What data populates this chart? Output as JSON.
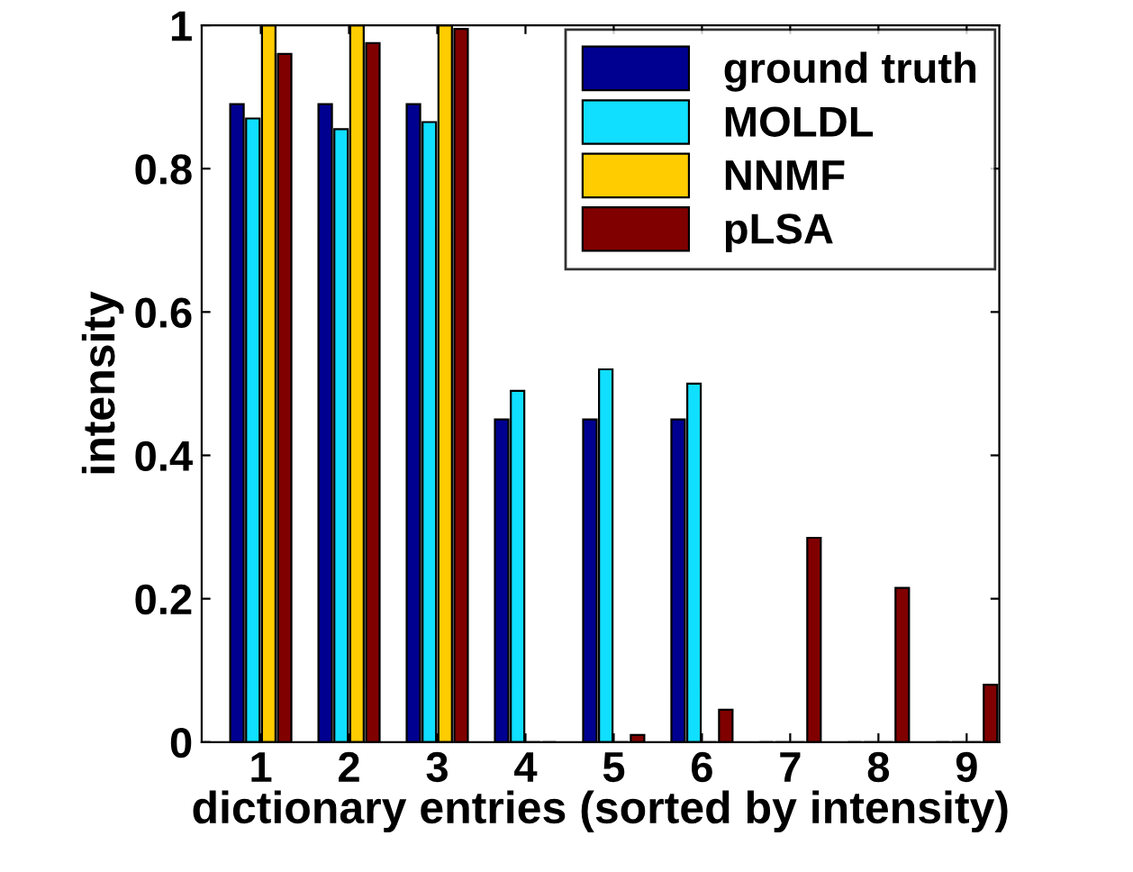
{
  "chart_data": {
    "type": "bar",
    "xlabel": "dictionary entries (sorted by intensity)",
    "ylabel": "intensity",
    "categories": [
      "1",
      "2",
      "3",
      "4",
      "5",
      "6",
      "7",
      "8",
      "9"
    ],
    "series": [
      {
        "name": "ground truth",
        "color": "#000090",
        "values": [
          0.89,
          0.89,
          0.89,
          0.45,
          0.45,
          0.45,
          0,
          0,
          0
        ]
      },
      {
        "name": "MOLDL",
        "color": "#10dfff",
        "values": [
          0.87,
          0.855,
          0.865,
          0.49,
          0.52,
          0.5,
          0,
          0,
          0
        ]
      },
      {
        "name": "NNMF",
        "color": "#ffcc00",
        "values": [
          1,
          1,
          1,
          0,
          0,
          0,
          0,
          0,
          0
        ]
      },
      {
        "name": "pLSA",
        "color": "#800000",
        "values": [
          0.96,
          0.975,
          0.995,
          0,
          0.01,
          0.045,
          0.285,
          0.215,
          0.08
        ]
      }
    ],
    "ylim": [
      0,
      1
    ],
    "yticks": [
      0,
      0.2,
      0.4,
      0.6,
      0.8,
      1
    ],
    "grid": false,
    "legend": "top right"
  }
}
